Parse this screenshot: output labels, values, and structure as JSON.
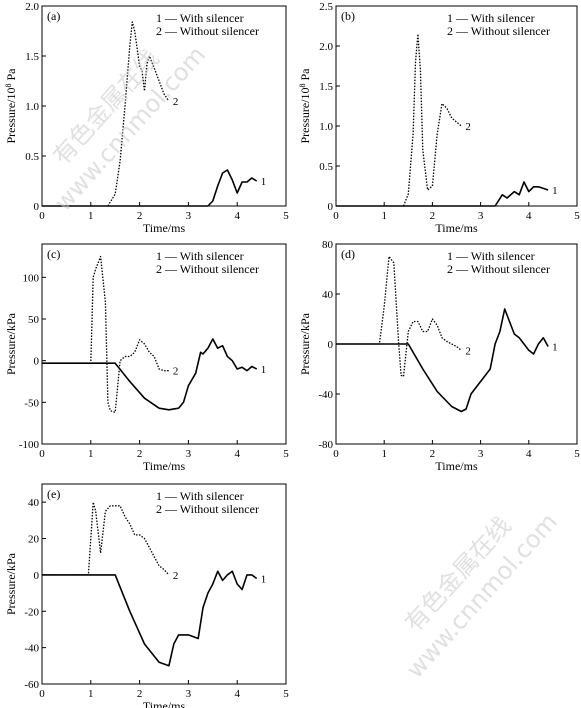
{
  "watermark": {
    "line1": "有色金属在线",
    "line2": "www.cnnmol.com"
  },
  "legend_labels": [
    "1 — With silencer",
    "2 — Without silencer"
  ],
  "chart_data": [
    {
      "type": "line",
      "panel": "(a)",
      "xlabel": "Time/ms",
      "ylabel_main": "Pressure/10",
      "ylabel_sup": "8",
      "ylabel_unit": " Pa",
      "xlim": [
        0,
        5
      ],
      "ylim": [
        0,
        2.0
      ],
      "xticks": [
        "0",
        "1",
        "2",
        "3",
        "4",
        "5"
      ],
      "yticks": [
        "0",
        "0.5",
        "1.0",
        "1.5",
        "2.0"
      ],
      "ytick_values": [
        0,
        0.5,
        1.0,
        1.5,
        2.0
      ],
      "series": [
        {
          "name": "With silencer",
          "curve_label": "1",
          "style": "solid",
          "x": [
            0,
            3.4,
            3.5,
            3.6,
            3.7,
            3.8,
            3.9,
            4.0,
            4.1,
            4.2,
            4.3,
            4.4
          ],
          "y": [
            0,
            0,
            0.05,
            0.2,
            0.33,
            0.36,
            0.26,
            0.13,
            0.24,
            0.24,
            0.28,
            0.25
          ]
        },
        {
          "name": "Without silencer",
          "curve_label": "2",
          "style": "dotted",
          "x": [
            1.35,
            1.5,
            1.6,
            1.7,
            1.8,
            1.85,
            1.9,
            2.0,
            2.05,
            2.1,
            2.15,
            2.2,
            2.3,
            2.4,
            2.5,
            2.6
          ],
          "y": [
            0,
            0.12,
            0.45,
            1.0,
            1.6,
            1.84,
            1.75,
            1.4,
            1.35,
            1.15,
            1.42,
            1.5,
            1.38,
            1.25,
            1.12,
            1.05
          ]
        }
      ]
    },
    {
      "type": "line",
      "panel": "(b)",
      "xlabel": "Time/ms",
      "ylabel_main": "Pressure/10",
      "ylabel_sup": "8",
      "ylabel_unit": " Pa",
      "xlim": [
        0,
        5
      ],
      "ylim": [
        0,
        2.5
      ],
      "xticks": [
        "0",
        "1",
        "2",
        "3",
        "4",
        "5"
      ],
      "yticks": [
        "0",
        "0.5",
        "1.0",
        "1.5",
        "2.0",
        "2.5"
      ],
      "ytick_values": [
        0,
        0.5,
        1.0,
        1.5,
        2.0,
        2.5
      ],
      "series": [
        {
          "name": "With silencer",
          "curve_label": "1",
          "style": "solid",
          "x": [
            0,
            3.3,
            3.45,
            3.55,
            3.7,
            3.8,
            3.9,
            4.0,
            4.1,
            4.2,
            4.3,
            4.4
          ],
          "y": [
            0,
            0,
            0.14,
            0.1,
            0.18,
            0.14,
            0.3,
            0.18,
            0.24,
            0.24,
            0.22,
            0.2
          ]
        },
        {
          "name": "Without silencer",
          "curve_label": "2",
          "style": "dotted",
          "x": [
            1.4,
            1.5,
            1.6,
            1.65,
            1.7,
            1.75,
            1.8,
            1.9,
            2.0,
            2.1,
            2.2,
            2.3,
            2.4,
            2.5,
            2.6
          ],
          "y": [
            0,
            0.15,
            0.9,
            1.8,
            2.15,
            1.7,
            0.7,
            0.2,
            0.25,
            0.9,
            1.28,
            1.22,
            1.1,
            1.05,
            1.0
          ]
        }
      ]
    },
    {
      "type": "line",
      "panel": "(c)",
      "xlabel": "Time/ms",
      "ylabel_main": "Pressure/kPa",
      "xlim": [
        0,
        5
      ],
      "ylim": [
        -100,
        140
      ],
      "xticks": [
        "0",
        "1",
        "2",
        "3",
        "4",
        "5"
      ],
      "yticks": [
        "-100",
        "-50",
        "0",
        "50",
        "100"
      ],
      "ytick_values": [
        -100,
        -50,
        0,
        50,
        100
      ],
      "series": [
        {
          "name": "With silencer",
          "curve_label": "1",
          "style": "solid",
          "x": [
            0,
            1.5,
            1.8,
            2.1,
            2.4,
            2.6,
            2.8,
            2.9,
            3.0,
            3.15,
            3.25,
            3.3,
            3.4,
            3.5,
            3.6,
            3.7,
            3.8,
            3.9,
            4.0,
            4.1,
            4.2,
            4.3,
            4.4
          ],
          "y": [
            -3,
            -3,
            -25,
            -45,
            -57,
            -59,
            -57,
            -50,
            -30,
            -15,
            10,
            8,
            15,
            26,
            15,
            18,
            5,
            0,
            -10,
            -8,
            -12,
            -7,
            -10
          ]
        },
        {
          "name": "Without silencer",
          "curve_label": "2",
          "style": "dotted",
          "x": [
            0,
            1.0,
            1.05,
            1.1,
            1.2,
            1.3,
            1.35,
            1.4,
            1.5,
            1.6,
            1.7,
            1.8,
            1.9,
            2.0,
            2.1,
            2.2,
            2.3,
            2.4,
            2.5,
            2.6
          ],
          "y": [
            -3,
            -3,
            100,
            110,
            125,
            70,
            -50,
            -60,
            -62,
            0,
            5,
            5,
            10,
            25,
            20,
            10,
            5,
            -10,
            -12,
            -12
          ]
        }
      ]
    },
    {
      "type": "line",
      "panel": "(d)",
      "xlabel": "Time/ms",
      "ylabel_main": "Pressure/kPa",
      "xlim": [
        0,
        5
      ],
      "ylim": [
        -80,
        80
      ],
      "xticks": [
        "0",
        "1",
        "2",
        "3",
        "4",
        "5"
      ],
      "yticks": [
        "-80",
        "-40",
        "0",
        "40",
        "80"
      ],
      "ytick_values": [
        -80,
        -40,
        0,
        40,
        80
      ],
      "series": [
        {
          "name": "With silencer",
          "curve_label": "1",
          "style": "solid",
          "x": [
            0,
            1.5,
            1.8,
            2.1,
            2.4,
            2.6,
            2.7,
            2.8,
            3.0,
            3.2,
            3.3,
            3.4,
            3.5,
            3.6,
            3.7,
            3.8,
            3.9,
            4.0,
            4.1,
            4.2,
            4.3,
            4.4
          ],
          "y": [
            0,
            0,
            -20,
            -38,
            -50,
            -54,
            -52,
            -40,
            -30,
            -20,
            0,
            10,
            28,
            18,
            8,
            5,
            0,
            -5,
            -8,
            0,
            5,
            -2
          ]
        },
        {
          "name": "Without silencer",
          "curve_label": "2",
          "style": "dotted",
          "x": [
            0,
            0.9,
            1.0,
            1.1,
            1.2,
            1.3,
            1.35,
            1.4,
            1.5,
            1.6,
            1.7,
            1.8,
            1.9,
            2.0,
            2.1,
            2.2,
            2.3,
            2.4,
            2.5,
            2.6
          ],
          "y": [
            0,
            0,
            30,
            70,
            65,
            0,
            -25,
            -26,
            10,
            18,
            18,
            10,
            10,
            20,
            15,
            5,
            2,
            0,
            -2,
            -5
          ]
        }
      ]
    },
    {
      "type": "line",
      "panel": "(e)",
      "xlabel": "Time/ms",
      "ylabel_main": "Pressure/kPa",
      "xlim": [
        0,
        5
      ],
      "ylim": [
        -60,
        50
      ],
      "xticks": [
        "0",
        "1",
        "2",
        "3",
        "4",
        "5"
      ],
      "yticks": [
        "-60",
        "-40",
        "-20",
        "0",
        "20",
        "40"
      ],
      "ytick_values": [
        -60,
        -40,
        -20,
        0,
        20,
        40
      ],
      "series": [
        {
          "name": "With silencer",
          "curve_label": "1",
          "style": "solid",
          "x": [
            0,
            1.5,
            1.8,
            2.1,
            2.4,
            2.6,
            2.7,
            2.8,
            3.0,
            3.2,
            3.3,
            3.4,
            3.5,
            3.6,
            3.7,
            3.8,
            3.9,
            4.0,
            4.1,
            4.2,
            4.3,
            4.4
          ],
          "y": [
            0,
            0,
            -20,
            -38,
            -48,
            -50,
            -38,
            -33,
            -33,
            -35,
            -18,
            -10,
            -5,
            2,
            -3,
            0,
            2,
            -5,
            -8,
            0,
            0,
            -2
          ]
        },
        {
          "name": "Without silencer",
          "curve_label": "2",
          "style": "dotted",
          "x": [
            0,
            0.95,
            1.05,
            1.1,
            1.2,
            1.3,
            1.4,
            1.5,
            1.6,
            1.7,
            1.8,
            1.9,
            2.0,
            2.1,
            2.2,
            2.3,
            2.4,
            2.5,
            2.6
          ],
          "y": [
            0,
            0,
            40,
            35,
            12,
            35,
            38,
            38,
            38,
            32,
            28,
            22,
            22,
            20,
            15,
            10,
            5,
            3,
            0
          ]
        }
      ]
    }
  ]
}
